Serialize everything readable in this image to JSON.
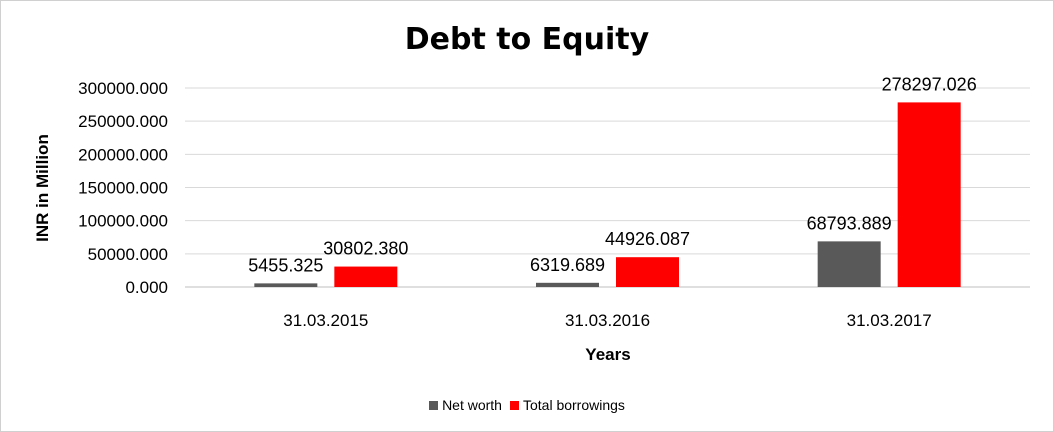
{
  "chart_data": {
    "type": "bar",
    "title": "Debt to Equity",
    "xlabel": "Years",
    "ylabel": "INR in Million",
    "categories": [
      "31.03.2015",
      "31.03.2016",
      "31.03.2017"
    ],
    "series": [
      {
        "name": "Net worth",
        "color": "#595959",
        "values": [
          5455.325,
          6319.689,
          68793.889
        ],
        "labels": [
          "5455.325",
          "6319.689",
          "68793.889"
        ]
      },
      {
        "name": "Total borrowings",
        "color": "#ff0000",
        "values": [
          30802.38,
          44926.087,
          278297.026
        ],
        "labels": [
          "30802.380",
          "44926.087",
          "278297.026"
        ]
      }
    ],
    "ylim": [
      0,
      300000
    ],
    "yticks": [
      "0.000",
      "50000.000",
      "100000.000",
      "150000.000",
      "200000.000",
      "250000.000",
      "300000.000"
    ],
    "grid": true,
    "legend_position": "bottom"
  }
}
